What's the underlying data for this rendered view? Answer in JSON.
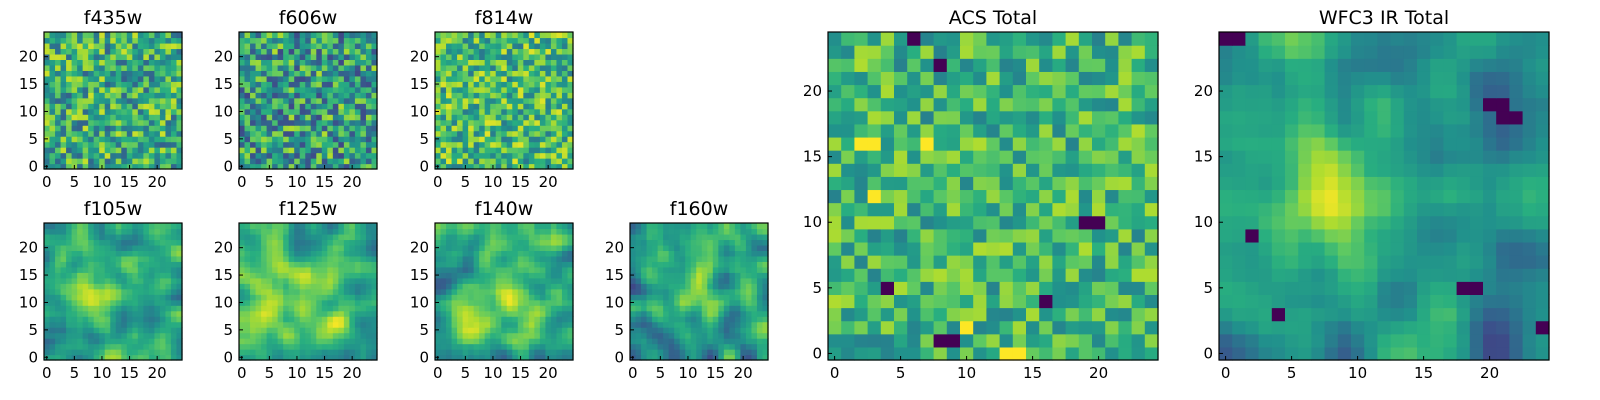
{
  "figure": {
    "description_free": true,
    "colormap": "viridis",
    "colors": {
      "low": "#440154",
      "mid_low": "#31688e",
      "mid": "#35b779",
      "high": "#fde725",
      "frame": "#000000"
    }
  },
  "chart_data": [
    {
      "type": "heatmap",
      "title": "f435w",
      "grid_size": 25,
      "xlim": [
        0,
        25
      ],
      "ylim": [
        0,
        25
      ],
      "xticks": [
        0,
        5,
        10,
        15,
        20
      ],
      "yticks": [
        0,
        5,
        10,
        15,
        20
      ],
      "value_range": [
        0,
        1
      ],
      "texture": "noise",
      "seed": 11,
      "level": 0.62,
      "spread": 0.22
    },
    {
      "type": "heatmap",
      "title": "f606w",
      "grid_size": 25,
      "xlim": [
        0,
        25
      ],
      "ylim": [
        0,
        25
      ],
      "xticks": [
        0,
        5,
        10,
        15,
        20
      ],
      "yticks": [
        0,
        5,
        10,
        15,
        20
      ],
      "value_range": [
        0,
        1
      ],
      "texture": "noise",
      "seed": 23,
      "level": 0.55,
      "spread": 0.24
    },
    {
      "type": "heatmap",
      "title": "f814w",
      "grid_size": 25,
      "xlim": [
        0,
        25
      ],
      "ylim": [
        0,
        25
      ],
      "xticks": [
        0,
        5,
        10,
        15,
        20
      ],
      "yticks": [
        0,
        5,
        10,
        15,
        20
      ],
      "value_range": [
        0,
        1
      ],
      "texture": "noise",
      "seed": 37,
      "level": 0.68,
      "spread": 0.2
    },
    {
      "type": "heatmap",
      "title": "f105w",
      "grid_size": 25,
      "xlim": [
        0,
        25
      ],
      "ylim": [
        0,
        25
      ],
      "xticks": [
        0,
        5,
        10,
        15,
        20
      ],
      "yticks": [
        0,
        5,
        10,
        15,
        20
      ],
      "value_range": [
        0,
        1
      ],
      "texture": "smooth",
      "seed": 41,
      "level": 0.58,
      "spread": 0.2,
      "peak": {
        "x": 9,
        "y": 12,
        "amplitude": 0.28,
        "width": 5
      }
    },
    {
      "type": "heatmap",
      "title": "f125w",
      "grid_size": 25,
      "xlim": [
        0,
        25
      ],
      "ylim": [
        0,
        25
      ],
      "xticks": [
        0,
        5,
        10,
        15,
        20
      ],
      "yticks": [
        0,
        5,
        10,
        15,
        20
      ],
      "value_range": [
        0,
        1
      ],
      "texture": "smooth",
      "seed": 53,
      "level": 0.64,
      "spread": 0.2,
      "peak": {
        "x": 12,
        "y": 10,
        "amplitude": 0.12,
        "width": 6
      }
    },
    {
      "type": "heatmap",
      "title": "f140w",
      "grid_size": 25,
      "xlim": [
        0,
        25
      ],
      "ylim": [
        0,
        25
      ],
      "xticks": [
        0,
        5,
        10,
        15,
        20
      ],
      "yticks": [
        0,
        5,
        10,
        15,
        20
      ],
      "value_range": [
        0,
        1
      ],
      "texture": "smooth",
      "seed": 67,
      "level": 0.58,
      "spread": 0.22,
      "peak": {
        "x": 11,
        "y": 11,
        "amplitude": 0.18,
        "width": 5
      }
    },
    {
      "type": "heatmap",
      "title": "f160w",
      "grid_size": 25,
      "xlim": [
        0,
        25
      ],
      "ylim": [
        0,
        25
      ],
      "xticks": [
        0,
        5,
        10,
        15,
        20
      ],
      "yticks": [
        0,
        5,
        10,
        15,
        20
      ],
      "value_range": [
        0,
        1
      ],
      "texture": "smooth",
      "seed": 79,
      "level": 0.52,
      "spread": 0.22,
      "peak": {
        "x": 11,
        "y": 13,
        "amplitude": 0.3,
        "width": 4
      }
    },
    {
      "type": "heatmap",
      "title": "ACS Total",
      "grid_size": 25,
      "xlim": [
        0,
        25
      ],
      "ylim": [
        0,
        25
      ],
      "xticks": [
        0,
        5,
        10,
        15,
        20
      ],
      "yticks": [
        0,
        5,
        10,
        15,
        20
      ],
      "value_range": [
        0,
        1
      ],
      "texture": "noise",
      "seed": 97,
      "level": 0.66,
      "spread": 0.16,
      "dark_pixels": [
        [
          6,
          24
        ],
        [
          8,
          22
        ],
        [
          4,
          5
        ],
        [
          16,
          4
        ],
        [
          19,
          10
        ],
        [
          20,
          10
        ],
        [
          8,
          1
        ],
        [
          9,
          1
        ]
      ],
      "bright_pixels": [
        [
          2,
          16
        ],
        [
          3,
          16
        ],
        [
          7,
          16
        ],
        [
          10,
          2
        ],
        [
          13,
          0
        ],
        [
          14,
          0
        ],
        [
          3,
          12
        ]
      ]
    },
    {
      "type": "heatmap",
      "title": "WFC3 IR Total",
      "grid_size": 25,
      "xlim": [
        0,
        25
      ],
      "ylim": [
        0,
        25
      ],
      "xticks": [
        0,
        5,
        10,
        15,
        20
      ],
      "yticks": [
        0,
        5,
        10,
        15,
        20
      ],
      "value_range": [
        0,
        1
      ],
      "texture": "smooth",
      "seed": 131,
      "level": 0.5,
      "spread": 0.2,
      "peak": {
        "x": 9,
        "y": 12,
        "amplitude": 0.3,
        "width": 4
      },
      "dark_pixels": [
        [
          20,
          19
        ],
        [
          21,
          19
        ],
        [
          21,
          18
        ],
        [
          22,
          18
        ],
        [
          2,
          9
        ],
        [
          18,
          5
        ],
        [
          19,
          5
        ],
        [
          4,
          3
        ],
        [
          24,
          2
        ],
        [
          1,
          24
        ],
        [
          0,
          24
        ]
      ]
    }
  ]
}
